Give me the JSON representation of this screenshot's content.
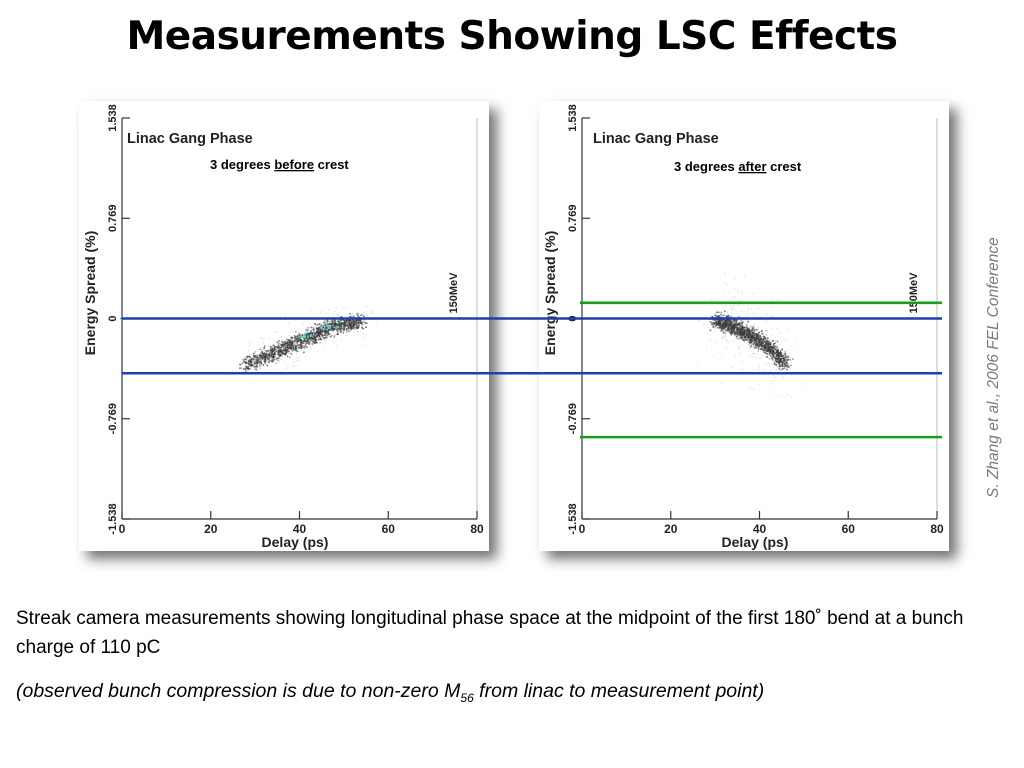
{
  "slide": {
    "title": "Measurements Showing LSC Effects",
    "credit": "S. Zhang et al., 2006 FEL Conference",
    "caption": "Streak camera measurements showing longitudinal phase space at the midpoint of the first 180˚ bend at a bunch charge of 110 pC",
    "note": {
      "prefix": "(observed bunch compression is due to non-zero M",
      "subscript": "56",
      "suffix": " from linac to measurement point)"
    }
  },
  "colors": {
    "blue_line": "#1f3fae",
    "green_line": "#14a01a",
    "scatter": "#3a3a3a",
    "cyan_points": "#2fd3d3"
  },
  "overlay_lines": {
    "blue_energy_spread": [
      0.0,
      -0.42
    ],
    "green_energy_spread": [
      0.12,
      -0.91
    ]
  },
  "chart_data": [
    {
      "type": "scatter",
      "plot_title": "Linac Gang Phase",
      "annotation": {
        "pre": "3 degrees ",
        "emph": "before",
        "post": " crest"
      },
      "xlabel": "Delay (ps)",
      "ylabel": "Energy Spread (%)",
      "right_label": "150MeV",
      "xlim": [
        0,
        80
      ],
      "ylim": [
        -1.538,
        1.538
      ],
      "xticks": [
        "0",
        "20",
        "40",
        "60",
        "80"
      ],
      "yticks": [
        "1.538",
        "0.769",
        "0",
        "-0.769",
        "-1.538"
      ],
      "bunch_centerline": {
        "x": [
          28,
          35,
          42,
          48,
          54
        ],
        "y": [
          -0.36,
          -0.25,
          -0.15,
          -0.06,
          -0.02
        ]
      }
    },
    {
      "type": "scatter",
      "plot_title": "Linac Gang Phase",
      "annotation": {
        "pre": "3 degrees ",
        "emph": "after",
        "post": " crest"
      },
      "xlabel": "Delay (ps)",
      "ylabel": "Energy Spread (%)",
      "right_label": "150MeV",
      "xlim": [
        0,
        80
      ],
      "ylim": [
        -1.538,
        1.538
      ],
      "xticks": [
        "0",
        "20",
        "40",
        "60",
        "80"
      ],
      "yticks": [
        "1.538",
        "0.769",
        "0",
        "-0.769",
        "-1.538"
      ],
      "bunch_centerline": {
        "x": [
          30,
          34,
          38,
          42,
          46
        ],
        "y": [
          -0.02,
          -0.06,
          -0.13,
          -0.22,
          -0.36
        ]
      }
    }
  ]
}
